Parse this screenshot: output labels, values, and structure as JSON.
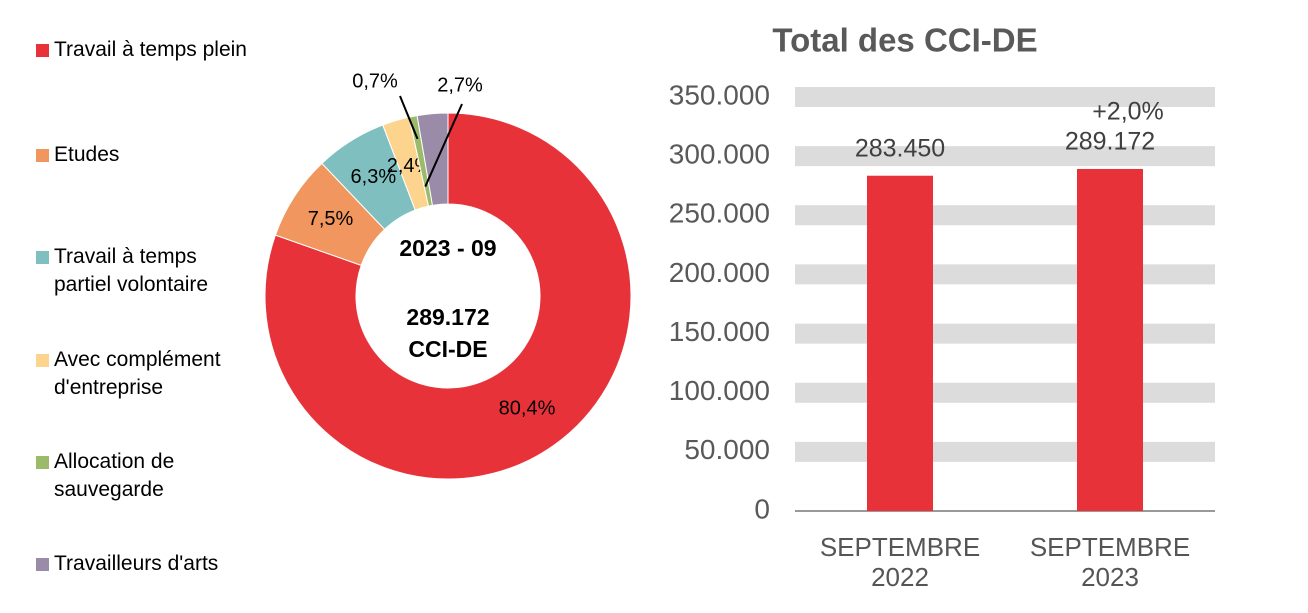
{
  "chart_data": [
    {
      "type": "pie",
      "categories": [
        "Travail à temps plein",
        "Etudes",
        "Travail à temps partiel volontaire",
        "Avec complément d'entreprise",
        "Allocation de sauvegarde",
        "Travailleurs d'arts"
      ],
      "values": [
        80.4,
        7.5,
        6.3,
        2.4,
        0.7,
        2.7
      ],
      "value_labels": [
        "80,4%",
        "7,5%",
        "6,3%",
        "2,4%",
        "0,7%",
        "2,7%"
      ],
      "colors": [
        "#e8323a",
        "#f0965e",
        "#7fbfbf",
        "#fdd48e",
        "#9bbb6b",
        "#9a8ca8"
      ],
      "center_title": "2023 - 09",
      "center_value": "289.172",
      "center_unit": "CCI-DE",
      "legend": "left"
    },
    {
      "type": "bar",
      "title": "Total des CCI-DE",
      "categories": [
        "SEPTEMBRE 2022",
        "SEPTEMBRE 2023"
      ],
      "values": [
        283450,
        289172
      ],
      "value_labels": [
        "283.450",
        "289.172"
      ],
      "annotations": [
        null,
        "+2,0%"
      ],
      "color": "#e8323a",
      "ylim": [
        0,
        350000
      ],
      "yticks": [
        0,
        {
          "value": 50000,
          "label": "50.000"
        },
        {
          "value": 100000,
          "label": "100.000"
        },
        {
          "value": 150000,
          "label": "150.000"
        },
        {
          "value": 200000,
          "label": "200.000"
        },
        {
          "value": 250000,
          "label": "250.000"
        },
        {
          "value": 300000,
          "label": "300.000"
        },
        {
          "value": 350000,
          "label": "350.000"
        }
      ],
      "grid": true
    }
  ]
}
